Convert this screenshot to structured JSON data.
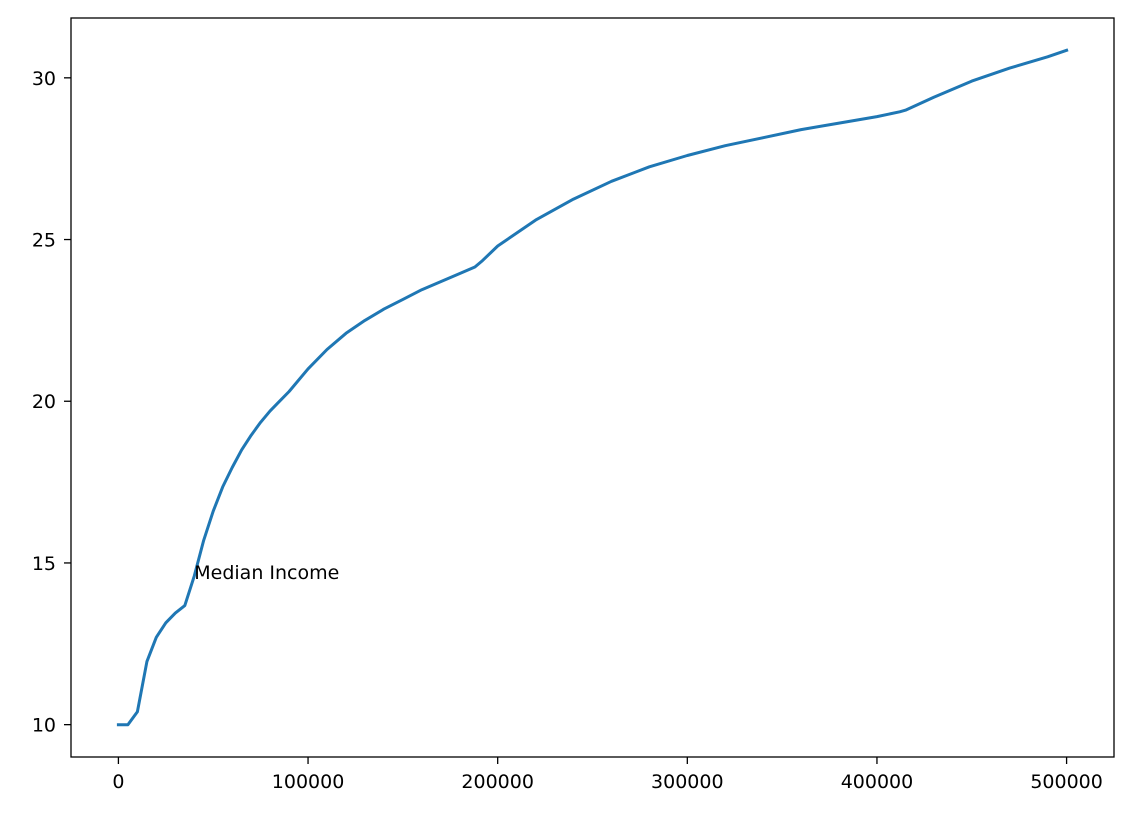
{
  "chart_data": {
    "type": "line",
    "title": "",
    "xlabel": "",
    "ylabel": "",
    "xlim": [
      -25000,
      525000
    ],
    "ylim": [
      9.0,
      31.85
    ],
    "grid": false,
    "x_ticks": [
      0,
      100000,
      200000,
      300000,
      400000,
      500000
    ],
    "x_tick_labels": [
      "0",
      "100000",
      "200000",
      "300000",
      "400000",
      "500000"
    ],
    "y_ticks": [
      10,
      15,
      20,
      25,
      30
    ],
    "y_tick_labels": [
      "10",
      "15",
      "20",
      "25",
      "30"
    ],
    "series": [
      {
        "color": "#1f77b4",
        "x": [
          0,
          5000,
          10000,
          15000,
          20000,
          25000,
          30000,
          35000,
          40000,
          45000,
          50000,
          55000,
          60000,
          65000,
          70000,
          75000,
          80000,
          85000,
          90000,
          100000,
          110000,
          120000,
          130000,
          140000,
          150000,
          160000,
          170000,
          180000,
          188000,
          192000,
          200000,
          220000,
          240000,
          260000,
          280000,
          300000,
          320000,
          340000,
          360000,
          380000,
          400000,
          412000,
          415000,
          430000,
          450000,
          470000,
          490000,
          500000
        ],
        "y": [
          10.0,
          10.0,
          10.4,
          11.95,
          12.7,
          13.15,
          13.45,
          13.68,
          14.6,
          15.7,
          16.6,
          17.35,
          17.95,
          18.5,
          18.95,
          19.35,
          19.7,
          20.0,
          20.3,
          21.0,
          21.6,
          22.1,
          22.5,
          22.85,
          23.15,
          23.45,
          23.7,
          23.95,
          24.15,
          24.35,
          24.8,
          25.6,
          26.25,
          26.8,
          27.25,
          27.6,
          27.9,
          28.15,
          28.4,
          28.6,
          28.8,
          28.95,
          29.0,
          29.4,
          29.9,
          30.3,
          30.65,
          30.85
        ]
      }
    ],
    "annotations": [
      {
        "text": "Median Income",
        "x": 40000,
        "y": 14.5
      }
    ]
  }
}
